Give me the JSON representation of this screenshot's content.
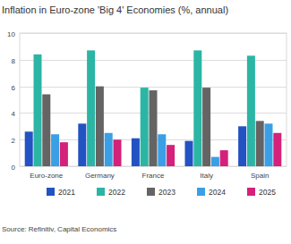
{
  "chart_data": {
    "type": "bar",
    "title": "Inflation in Euro-zone 'Big 4' Economies (%, annual)",
    "source": "Source: Refinitiv, Capital Economics",
    "categories": [
      "Euro-zone",
      "Germany",
      "France",
      "Italy",
      "Spain"
    ],
    "series": [
      {
        "name": "2021",
        "color": "#2352c2",
        "values": [
          2.6,
          3.2,
          2.1,
          1.9,
          3.0
        ]
      },
      {
        "name": "2022",
        "color": "#2bb5a4",
        "values": [
          8.4,
          8.7,
          5.9,
          8.7,
          8.3
        ]
      },
      {
        "name": "2023",
        "color": "#646464",
        "values": [
          5.4,
          6.0,
          5.7,
          5.9,
          3.4
        ]
      },
      {
        "name": "2024",
        "color": "#3a9fe4",
        "values": [
          2.4,
          2.5,
          2.4,
          0.7,
          3.2
        ]
      },
      {
        "name": "2025",
        "color": "#d42179",
        "values": [
          1.8,
          2.0,
          1.6,
          1.2,
          2.5
        ]
      }
    ],
    "ylim": [
      0,
      10
    ],
    "yticks": [
      0,
      2,
      4,
      6,
      8,
      10
    ],
    "grid": true,
    "legend": "bottom"
  }
}
